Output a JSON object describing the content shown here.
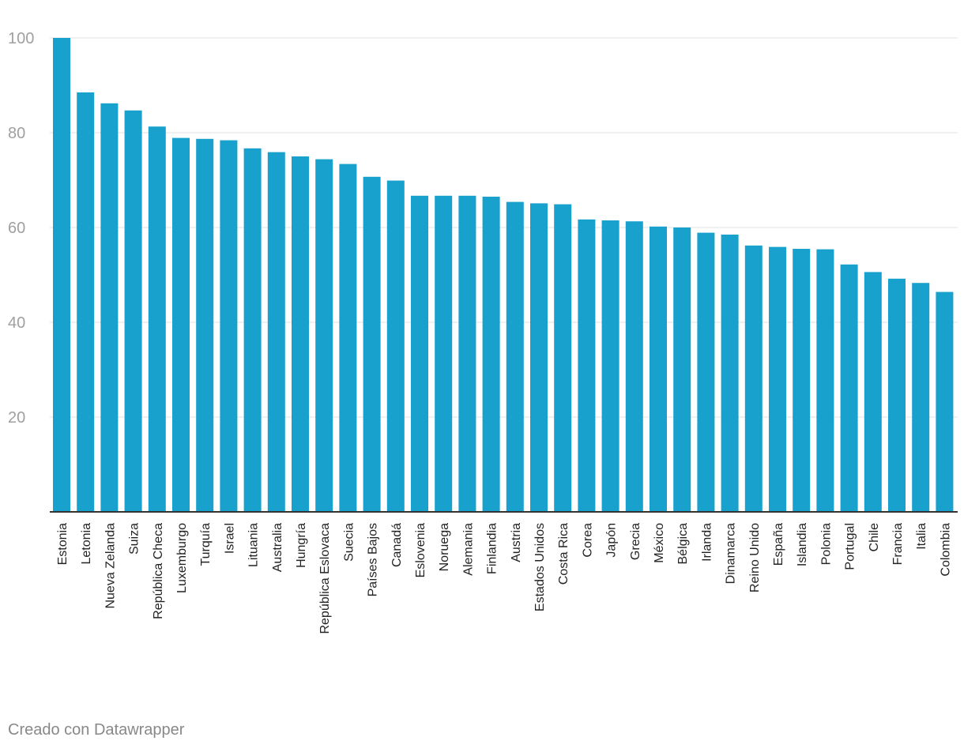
{
  "colors": {
    "bar": "#18a1cd",
    "grid": "#e1e1e1",
    "baseline": "#333333",
    "tick_label": "#a0a0a0",
    "category_label": "#222222",
    "credit": "#888888"
  },
  "footer": {
    "credit": "Creado con Datawrapper"
  },
  "chart_data": {
    "type": "bar",
    "title": "",
    "xlabel": "",
    "ylabel": "",
    "ylim": [
      0,
      100
    ],
    "yticks": [
      20,
      40,
      60,
      80,
      100
    ],
    "grid": true,
    "categories": [
      "Estonia",
      "Letonia",
      "Nueva Zelanda",
      "Suiza",
      "República Checa",
      "Luxemburgo",
      "Turquía",
      "Israel",
      "Lituania",
      "Australia",
      "Hungría",
      "República Eslovaca",
      "Suecia",
      "Países Bajos",
      "Canadá",
      "Eslovenia",
      "Noruega",
      "Alemania",
      "Finlandia",
      "Austria",
      "Estados Unidos",
      "Costa Rica",
      "Corea",
      "Japón",
      "Grecia",
      "México",
      "Bélgica",
      "Irlanda",
      "Dinamarca",
      "Reino Unido",
      "España",
      "Islandia",
      "Polonia",
      "Portugal",
      "Chile",
      "Francia",
      "Italia",
      "Colombia"
    ],
    "values": [
      100,
      88.5,
      86.2,
      84.7,
      81.3,
      78.9,
      78.7,
      78.4,
      76.7,
      75.9,
      75.0,
      74.4,
      73.4,
      70.7,
      69.9,
      66.7,
      66.7,
      66.7,
      66.5,
      65.4,
      65.1,
      64.9,
      61.7,
      61.5,
      61.3,
      60.2,
      60.0,
      58.9,
      58.5,
      56.2,
      55.9,
      55.5,
      55.4,
      52.2,
      50.6,
      49.2,
      48.3,
      46.4
    ]
  }
}
